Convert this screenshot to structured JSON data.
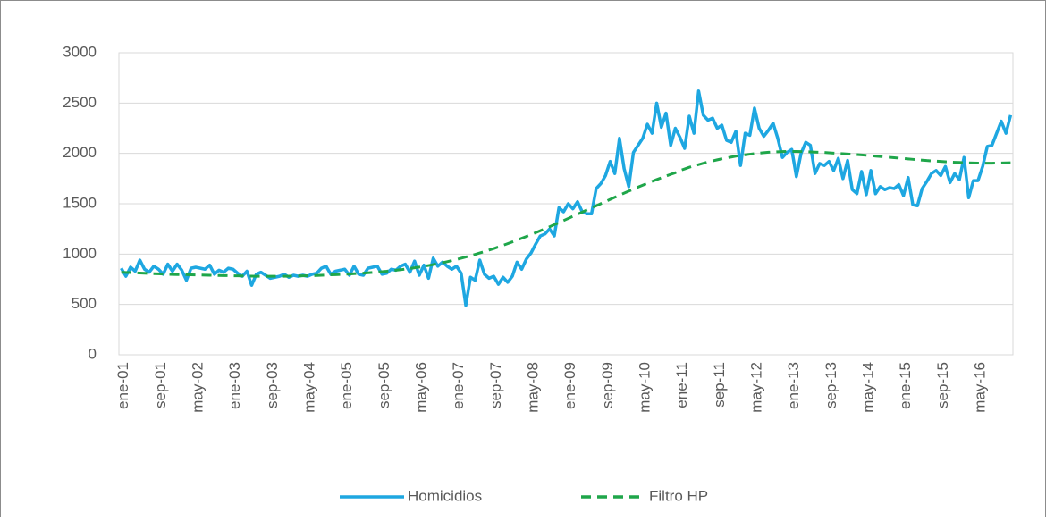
{
  "chart_data": {
    "type": "line",
    "categories": [
      "ene-01",
      null,
      null,
      null,
      null,
      null,
      null,
      null,
      "sep-01",
      null,
      null,
      null,
      null,
      null,
      null,
      null,
      "may-02",
      null,
      null,
      null,
      null,
      null,
      null,
      null,
      "ene-03",
      null,
      null,
      null,
      null,
      null,
      null,
      null,
      "sep-03",
      null,
      null,
      null,
      null,
      null,
      null,
      null,
      "may-04",
      null,
      null,
      null,
      null,
      null,
      null,
      null,
      "ene-05",
      null,
      null,
      null,
      null,
      null,
      null,
      null,
      "sep-05",
      null,
      null,
      null,
      null,
      null,
      null,
      null,
      "may-06",
      null,
      null,
      null,
      null,
      null,
      null,
      null,
      "ene-07",
      null,
      null,
      null,
      null,
      null,
      null,
      null,
      "sep-07",
      null,
      null,
      null,
      null,
      null,
      null,
      null,
      "may-08",
      null,
      null,
      null,
      null,
      null,
      null,
      null,
      "ene-09",
      null,
      null,
      null,
      null,
      null,
      null,
      null,
      "sep-09",
      null,
      null,
      null,
      null,
      null,
      null,
      null,
      "may-10",
      null,
      null,
      null,
      null,
      null,
      null,
      null,
      "ene-11",
      null,
      null,
      null,
      null,
      null,
      null,
      null,
      "sep-11",
      null,
      null,
      null,
      null,
      null,
      null,
      null,
      "may-12",
      null,
      null,
      null,
      null,
      null,
      null,
      null,
      "ene-13",
      null,
      null,
      null,
      null,
      null,
      null,
      null,
      "sep-13",
      null,
      null,
      null,
      null,
      null,
      null,
      null,
      "may-14",
      null,
      null,
      null,
      null,
      null,
      null,
      null,
      "ene-15",
      null,
      null,
      null,
      null,
      null,
      null,
      null,
      "sep-15",
      null,
      null,
      null,
      null,
      null,
      null,
      null,
      "may-16",
      null,
      null,
      null,
      null,
      null,
      null,
      null
    ],
    "series": [
      {
        "name": "Homicidios",
        "color": "#1ea7e1",
        "dash": false,
        "values": [
          860,
          780,
          870,
          830,
          940,
          850,
          820,
          880,
          850,
          800,
          900,
          830,
          900,
          840,
          740,
          860,
          870,
          860,
          850,
          890,
          800,
          840,
          820,
          860,
          850,
          810,
          780,
          830,
          690,
          800,
          820,
          790,
          760,
          770,
          780,
          800,
          770,
          790,
          780,
          790,
          780,
          800,
          810,
          860,
          880,
          800,
          830,
          840,
          850,
          790,
          880,
          800,
          790,
          860,
          870,
          880,
          800,
          810,
          850,
          840,
          880,
          900,
          820,
          930,
          790,
          890,
          760,
          960,
          880,
          920,
          880,
          850,
          880,
          810,
          490,
          770,
          740,
          940,
          800,
          760,
          780,
          700,
          770,
          720,
          780,
          920,
          850,
          950,
          1010,
          1100,
          1180,
          1200,
          1250,
          1180,
          1460,
          1420,
          1500,
          1450,
          1520,
          1420,
          1400,
          1400,
          1650,
          1700,
          1780,
          1920,
          1800,
          2150,
          1850,
          1670,
          2010,
          2080,
          2150,
          2290,
          2200,
          2500,
          2260,
          2400,
          2080,
          2250,
          2160,
          2050,
          2370,
          2200,
          2620,
          2380,
          2330,
          2350,
          2250,
          2280,
          2130,
          2110,
          2220,
          1880,
          2200,
          2180,
          2450,
          2250,
          2170,
          2230,
          2300,
          2150,
          1960,
          2010,
          2040,
          1770,
          2000,
          2110,
          2080,
          1800,
          1900,
          1880,
          1920,
          1830,
          1950,
          1750,
          1930,
          1640,
          1600,
          1820,
          1590,
          1830,
          1600,
          1670,
          1640,
          1660,
          1650,
          1690,
          1580,
          1760,
          1490,
          1480,
          1650,
          1720,
          1800,
          1830,
          1780,
          1870,
          1710,
          1800,
          1740,
          1960,
          1560,
          1730,
          1730,
          1870,
          2070,
          2080,
          2200,
          2320,
          2200,
          2380
        ]
      },
      {
        "name": "Filtro HP",
        "color": "#1fa64a",
        "dash": true,
        "values": [
          820,
          818,
          816,
          814,
          812,
          810,
          808,
          806,
          804,
          802,
          800,
          798,
          797,
          796,
          795,
          794,
          793,
          792,
          791,
          790,
          789,
          788,
          787,
          786,
          785,
          784,
          783,
          782,
          781,
          780,
          780,
          780,
          780,
          780,
          780,
          780,
          781,
          782,
          783,
          784,
          785,
          786,
          788,
          790,
          792,
          794,
          796,
          798,
          800,
          802,
          805,
          808,
          811,
          814,
          818,
          822,
          826,
          830,
          835,
          840,
          845,
          851,
          857,
          864,
          871,
          879,
          887,
          896,
          905,
          915,
          925,
          936,
          947,
          959,
          971,
          984,
          997,
          1011,
          1025,
          1040,
          1055,
          1071,
          1087,
          1104,
          1121,
          1139,
          1157,
          1175,
          1194,
          1213,
          1232,
          1252,
          1272,
          1292,
          1312,
          1333,
          1354,
          1375,
          1396,
          1417,
          1438,
          1459,
          1480,
          1501,
          1522,
          1543,
          1564,
          1585,
          1605,
          1625,
          1645,
          1665,
          1684,
          1703,
          1722,
          1740,
          1758,
          1775,
          1792,
          1808,
          1830,
          1846,
          1862,
          1876,
          1889,
          1902,
          1914,
          1925,
          1936,
          1946,
          1955,
          1964,
          1972,
          1979,
          1986,
          1992,
          1998,
          2003,
          2007,
          2011,
          2014,
          2016,
          2018,
          2019,
          2019,
          2019,
          2018,
          2017,
          2015,
          2013,
          2011,
          2009,
          2006,
          2003,
          2000,
          1997,
          1994,
          1991,
          1988,
          1985,
          1981,
          1977,
          1973,
          1969,
          1965,
          1961,
          1957,
          1953,
          1949,
          1945,
          1941,
          1937,
          1933,
          1929,
          1926,
          1923,
          1920,
          1917,
          1914,
          1912,
          1910,
          1908,
          1906,
          1905,
          1904,
          1903,
          1903,
          1903,
          1904,
          1905,
          1906,
          1907
        ]
      }
    ],
    "ylim": [
      0,
      3000
    ],
    "yticks": [
      0,
      500,
      1000,
      1500,
      2000,
      2500,
      3000
    ],
    "grid": true
  }
}
